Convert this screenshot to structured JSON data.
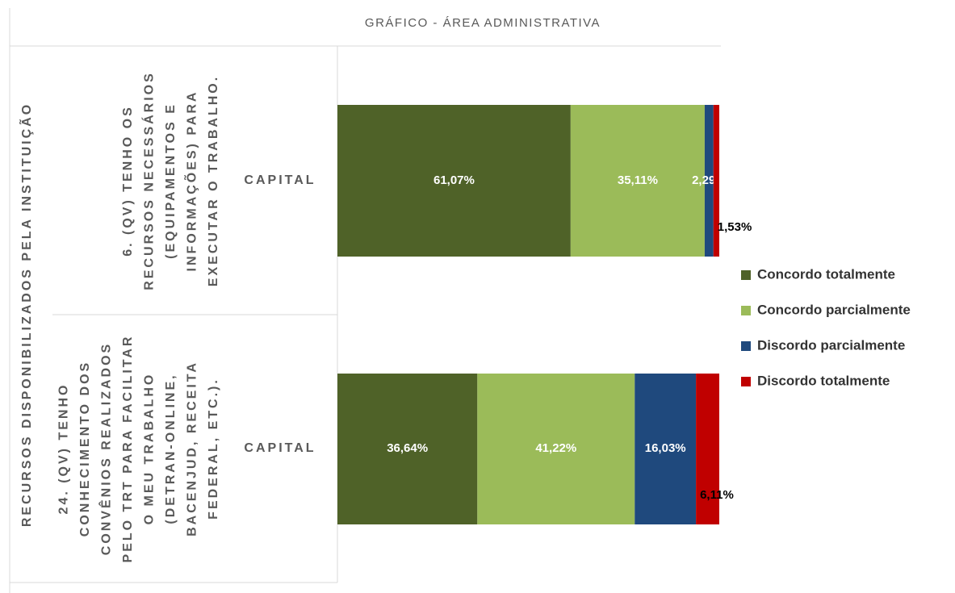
{
  "chart_data": {
    "type": "stacked_bar_horizontal",
    "title": "GRÁFICO - ÁREA ADMINISTRATIVA",
    "group_label": "RECURSOS DISPONIBILIZADOS PELA INSTITUIÇÃO",
    "questions": [
      [
        "6. (QV) TENHO OS",
        "RECURSOS NECESSÁRIOS",
        "(EQUIPAMENTOS E",
        "INFORMAÇÕES) PARA",
        "EXECUTAR O TRABALHO."
      ],
      [
        "24. (QV) TENHO",
        "CONHECIMENTO DOS",
        "CONVÊNIOS REALIZADOS",
        "PELO TRT PARA FACILITAR",
        "O MEU TRABALHO",
        "(DETRAN-ONLINE,",
        "BACENJUD, RECEITA",
        "FEDERAL, ETC.)."
      ]
    ],
    "categories": [
      "CAPITAL",
      "CAPITAL"
    ],
    "xlim": [
      0,
      100
    ],
    "series": [
      {
        "name": "Concordo totalmente",
        "color": "#4f6228",
        "values": [
          61.07,
          36.64
        ],
        "value_labels": [
          "61,07%",
          "36,64%"
        ]
      },
      {
        "name": "Concordo parcialmente",
        "color": "#9bbb59",
        "values": [
          35.11,
          41.22
        ],
        "value_labels": [
          "35,11%",
          "41,22%"
        ]
      },
      {
        "name": "Discordo parcialmente",
        "color": "#1f497d",
        "values": [
          2.29,
          16.03
        ],
        "value_labels": [
          "2,29%",
          "16,03%"
        ]
      },
      {
        "name": "Discordo totalmente",
        "color": "#c00000",
        "values": [
          1.53,
          6.11
        ],
        "value_labels": [
          "1,53%",
          "6,11%"
        ]
      }
    ]
  }
}
